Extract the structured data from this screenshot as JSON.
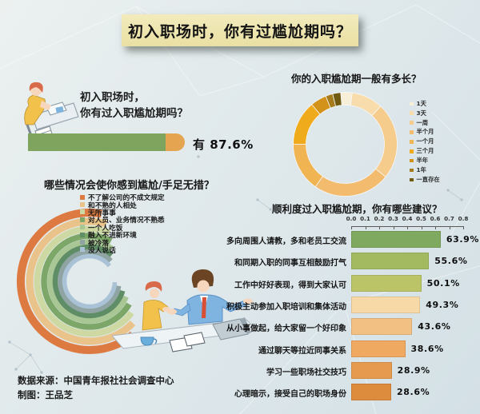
{
  "banner": {
    "title": "初入职场时，你有过尴尬期吗？"
  },
  "intro": {
    "question_line1": "初入职场时，",
    "question_line2": "你有过入职尴尬期吗？",
    "answer_label": "有 87.6%",
    "percent": 87.6,
    "bar_green": "#7fa45e",
    "bar_orange": "#e5a44f"
  },
  "situations": {
    "heading": "哪些情况会使你感到尴尬/手足无措？",
    "items": [
      {
        "label": "不了解公司的不成文规定",
        "color": "#dd7a42",
        "arc_start_deg": 10,
        "arc_end_deg": 141
      },
      {
        "label": "和不熟的人相处",
        "color": "#e9c389",
        "arc_start_deg": 16,
        "arc_end_deg": 134
      },
      {
        "label": "无所事事",
        "color": "#cdd8a2",
        "arc_start_deg": 22,
        "arc_end_deg": 127
      },
      {
        "label": "对人员、业务情况不熟悉",
        "color": "#7ca768",
        "arc_start_deg": 28,
        "arc_end_deg": 120
      },
      {
        "label": "一个人吃饭",
        "color": "#a9c795",
        "arc_start_deg": 34,
        "arc_end_deg": 113
      },
      {
        "label": "融入不进新环境",
        "color": "#5f8d66",
        "arc_start_deg": 40,
        "arc_end_deg": 106
      },
      {
        "label": "被冷落",
        "color": "#90a5a3",
        "arc_start_deg": 46,
        "arc_end_deg": 99
      },
      {
        "label": "没人说话",
        "color": "#a9c2d5",
        "arc_start_deg": 52,
        "arc_end_deg": 92
      }
    ]
  },
  "duration": {
    "heading": "你的入职尴尬期一般有多长？",
    "slices": [
      {
        "label": "1天",
        "color": "#f8efd8",
        "deg": 13
      },
      {
        "label": "3天",
        "color": "#f8dcab",
        "deg": 35
      },
      {
        "label": "一周",
        "color": "#f6cc8c",
        "deg": 86
      },
      {
        "label": "半个月",
        "color": "#f2bb6e",
        "deg": 86
      },
      {
        "label": "一个月",
        "color": "#f0b452, ",
        "deg": 55
      },
      {
        "label": "三个月",
        "color": "#f0ab1c",
        "deg": 50
      },
      {
        "label": "半年",
        "color": "#d3931b",
        "deg": 18
      },
      {
        "label": "1年",
        "color": "#a57b1c",
        "deg": 8
      },
      {
        "label": "一直存在",
        "color": "#6f5a10",
        "deg": 9
      }
    ]
  },
  "suggestions": {
    "heading": "顺利度过入职尴尬期，你有哪些建议？",
    "axis_ticks": [
      "0.0",
      "0.1",
      "0.2",
      "0.3",
      "0.4",
      "0.5",
      "0.6",
      "0.7",
      "0.8"
    ],
    "axis_max": 0.8,
    "bars": [
      {
        "label": "多向周围人请教，多和老员工交流",
        "value": 63.9,
        "value_label": "63.9%",
        "color": "#7fa95e"
      },
      {
        "label": "和同期入职的同事互相鼓励打气",
        "value": 55.6,
        "value_label": "55.6%",
        "color": "#a3ba60"
      },
      {
        "label": "工作中好好表现，得到大家认可",
        "value": 50.1,
        "value_label": "50.1%",
        "color": "#bcc468"
      },
      {
        "label": "积极主动参加入职培训和集体活动",
        "value": 49.3,
        "value_label": "49.3%",
        "color": "#f6d9a6"
      },
      {
        "label": "从小事做起，给大家留一个好印象",
        "value": 43.6,
        "value_label": "43.6%",
        "color": "#f3c083"
      },
      {
        "label": "通过聊天等拉近同事关系",
        "value": 38.6,
        "value_label": "38.6%",
        "color": "#efa960"
      },
      {
        "label": "学习一些职场社交技巧",
        "value": 28.9,
        "value_label": "28.9%",
        "color": "#e69a50"
      },
      {
        "label": "心理暗示，接受自己的职场身份",
        "value": 28.6,
        "value_label": "28.6%",
        "color": "#dd8b3d"
      }
    ]
  },
  "footer": {
    "source": "数据来源：中国青年报社社会调查中心",
    "credit": "制图：王品芝"
  },
  "chart_data": [
    {
      "type": "bar",
      "title": "初入职场时，你有过入职尴尬期吗？",
      "categories": [
        "有"
      ],
      "values": [
        87.6
      ],
      "unit": "%"
    },
    {
      "type": "pie",
      "title": "你的入职尴尬期一般有多长？",
      "categories": [
        "1天",
        "3天",
        "一周",
        "半个月",
        "一个月",
        "三个月",
        "半年",
        "1年",
        "一直存在"
      ],
      "values": [
        3.6,
        9.7,
        23.9,
        23.9,
        15.3,
        13.9,
        5.0,
        2.2,
        2.5
      ],
      "values_estimated": true,
      "unit": "%",
      "legend_position": "right"
    },
    {
      "type": "bar",
      "subtype": "radial-arcs",
      "title": "哪些情况会使你感到尴尬/手足无措？",
      "categories": [
        "不了解公司的不成文规定",
        "和不熟的人相处",
        "无所事事",
        "对人员、业务情况不熟悉",
        "一个人吃饭",
        "融入不进新环境",
        "被冷落",
        "没人说话"
      ],
      "values": null,
      "note": "no numeric values labeled; arc length encodes magnitude, outermost largest"
    },
    {
      "type": "bar",
      "orientation": "horizontal",
      "title": "顺利度过入职尴尬期，你有哪些建议？",
      "categories": [
        "多向周围人请教，多和老员工交流",
        "和同期入职的同事互相鼓励打气",
        "工作中好好表现，得到大家认可",
        "积极主动参加入职培训和集体活动",
        "从小事做起，给大家留一个好印象",
        "通过聊天等拉近同事关系",
        "学习一些职场社交技巧",
        "心理暗示，接受自己的职场身份"
      ],
      "values": [
        63.9,
        55.6,
        50.1,
        49.3,
        43.6,
        38.6,
        28.9,
        28.6
      ],
      "unit": "%",
      "xlim": [
        0,
        0.8
      ],
      "xticks": [
        "0.0",
        "0.1",
        "0.2",
        "0.3",
        "0.4",
        "0.5",
        "0.6",
        "0.7",
        "0.8"
      ],
      "grid": false
    }
  ]
}
